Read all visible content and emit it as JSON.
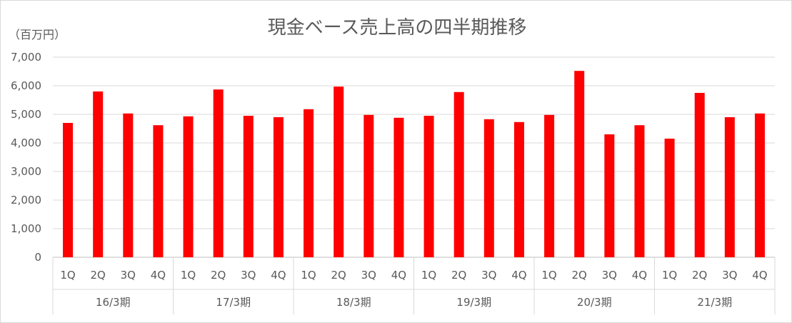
{
  "chart_data": {
    "type": "bar",
    "title": "現金ベース売上高の四半期推移",
    "ylabel": "（百万円）",
    "xlabel": "",
    "ylim": [
      0,
      7000
    ],
    "yticks": [
      "0",
      "1,000",
      "2,000",
      "3,000",
      "4,000",
      "5,000",
      "6,000",
      "7,000"
    ],
    "grid": true,
    "legend": "none",
    "bar_color": "#ff0000",
    "groups": [
      {
        "label": "16/3期",
        "categories": [
          "1Q",
          "2Q",
          "3Q",
          "4Q"
        ],
        "values": [
          4700,
          5800,
          5030,
          4620
        ]
      },
      {
        "label": "17/3期",
        "categories": [
          "1Q",
          "2Q",
          "3Q",
          "4Q"
        ],
        "values": [
          4930,
          5870,
          4950,
          4900
        ]
      },
      {
        "label": "18/3期",
        "categories": [
          "1Q",
          "2Q",
          "3Q",
          "4Q"
        ],
        "values": [
          5180,
          5970,
          4980,
          4880
        ]
      },
      {
        "label": "19/3期",
        "categories": [
          "1Q",
          "2Q",
          "3Q",
          "4Q"
        ],
        "values": [
          4950,
          5780,
          4830,
          4730
        ]
      },
      {
        "label": "20/3期",
        "categories": [
          "1Q",
          "2Q",
          "3Q",
          "4Q"
        ],
        "values": [
          4980,
          6520,
          4300,
          4620
        ]
      },
      {
        "label": "21/3期",
        "categories": [
          "1Q",
          "2Q",
          "3Q",
          "4Q"
        ],
        "values": [
          4150,
          5750,
          4900,
          5030
        ]
      }
    ]
  }
}
